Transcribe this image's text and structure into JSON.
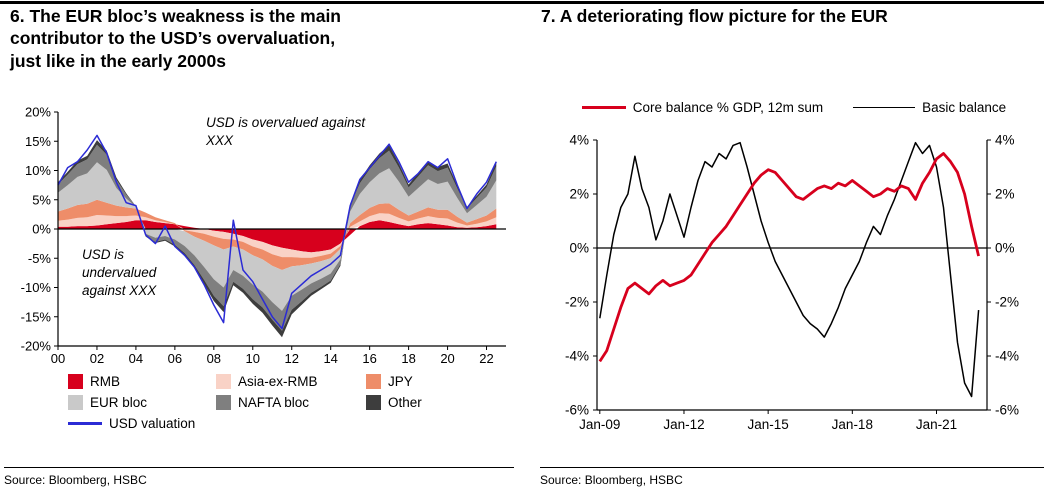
{
  "figure": {
    "left": {
      "title": "6.  The EUR bloc’s weakness is the main\ncontributor to the USD’s overvaluation,\njust like in the early 2000s",
      "source": "Source: Bloomberg, HSBC"
    },
    "right": {
      "title": "7. A deteriorating flow picture for the EUR",
      "source": "Source: Bloomberg, HSBC"
    }
  },
  "chart_data": [
    {
      "type": "area",
      "title": "6. The EUR bloc’s weakness is the main contributor to the USD’s overvaluation, just like in the early 2000s",
      "stacked": true,
      "x_range": [
        2000,
        2022.5
      ],
      "xlim": [
        2000,
        2023
      ],
      "ylim": [
        -20,
        20
      ],
      "yticks": [
        20,
        15,
        10,
        5,
        0,
        -5,
        -10,
        -15,
        -20
      ],
      "ytick_labels": [
        "20%",
        "15%",
        "10%",
        "5%",
        "0%",
        "-5%",
        "-10%",
        "-15%",
        "-20%"
      ],
      "xticks": [
        2000,
        2002,
        2004,
        2006,
        2008,
        2010,
        2012,
        2014,
        2016,
        2018,
        2020,
        2022
      ],
      "xtick_labels": [
        "00",
        "02",
        "04",
        "06",
        "08",
        "10",
        "12",
        "14",
        "16",
        "18",
        "20",
        "22"
      ],
      "annotations": [
        {
          "text": "USD is overvalued against XXX",
          "position": "upper-middle"
        },
        {
          "text": "USD is undervalued against XXX",
          "position": "lower-left"
        }
      ],
      "series": [
        {
          "name": "RMB",
          "color": "#d7001d",
          "values": [
            0.4,
            0.4,
            0.5,
            0.5,
            0.6,
            0.8,
            1.0,
            1.2,
            1.5,
            1.5,
            1.2,
            1.0,
            0.8,
            0.5,
            0.2,
            0.0,
            -0.3,
            -0.5,
            -0.8,
            -1.2,
            -1.8,
            -2.2,
            -2.8,
            -3.2,
            -3.5,
            -3.8,
            -4.0,
            -3.8,
            -3.5,
            -2.5,
            -1.0,
            0.5,
            1.2,
            1.5,
            1.2,
            0.8,
            0.5,
            0.8,
            1.0,
            0.8,
            0.6,
            0.3,
            0.2,
            0.3,
            0.5,
            0.8
          ]
        },
        {
          "name": "Asia-ex-RMB",
          "color": "#f9d2c6",
          "values": [
            1.0,
            1.2,
            1.4,
            1.5,
            1.8,
            1.5,
            1.2,
            1.0,
            0.8,
            0.5,
            0.3,
            0.2,
            0.0,
            -0.2,
            -0.5,
            -0.8,
            -1.0,
            -1.2,
            -1.0,
            -1.0,
            -1.2,
            -1.3,
            -1.5,
            -1.6,
            -1.3,
            -1.1,
            -0.9,
            -0.8,
            -0.7,
            -0.4,
            0.4,
            0.8,
            1.0,
            1.2,
            1.4,
            1.1,
            0.8,
            1.0,
            1.2,
            1.1,
            1.2,
            0.8,
            0.4,
            0.6,
            0.8,
            1.2
          ]
        },
        {
          "name": "JPY",
          "color": "#ee8d69",
          "values": [
            1.6,
            1.9,
            2.2,
            2.3,
            2.6,
            2.2,
            1.8,
            1.5,
            1.2,
            0.8,
            0.5,
            0.3,
            0.2,
            -0.2,
            -0.8,
            -1.2,
            -1.5,
            -1.8,
            -1.2,
            -1.3,
            -1.5,
            -1.7,
            -2.0,
            -2.2,
            -1.6,
            -1.3,
            -1.0,
            -0.9,
            -0.8,
            -0.5,
            0.6,
            1.1,
            1.4,
            1.6,
            1.8,
            1.4,
            1.0,
            1.2,
            1.5,
            1.4,
            1.5,
            1.0,
            0.5,
            0.8,
            1.0,
            1.5
          ]
        },
        {
          "name": "EUR bloc",
          "color": "#c9c9c9",
          "values": [
            3.2,
            4.0,
            4.8,
            5.2,
            6.4,
            5.6,
            3.0,
            1.5,
            0.3,
            -0.8,
            -1.5,
            -1.2,
            -1.8,
            -2.5,
            -3.2,
            -4.5,
            -5.8,
            -6.5,
            -4.0,
            -4.5,
            -5.0,
            -5.5,
            -6.2,
            -7.0,
            -5.0,
            -4.2,
            -3.4,
            -3.0,
            -2.6,
            -1.8,
            2.0,
            3.6,
            4.4,
            5.2,
            6.0,
            4.8,
            3.2,
            4.0,
            4.8,
            4.4,
            4.8,
            3.2,
            1.6,
            2.4,
            3.2,
            4.8
          ]
        },
        {
          "name": "NAFTA bloc",
          "color": "#7f7f7f",
          "values": [
            1.4,
            1.8,
            2.2,
            2.4,
            3.0,
            2.6,
            1.4,
            0.7,
            0.1,
            -0.4,
            -0.7,
            -0.6,
            -0.9,
            -1.2,
            -1.6,
            -2.2,
            -2.8,
            -3.2,
            -2.0,
            -2.2,
            -2.5,
            -2.7,
            -3.0,
            -3.4,
            -2.4,
            -2.0,
            -1.6,
            -1.4,
            -1.2,
            -0.8,
            1.0,
            1.8,
            2.2,
            2.6,
            3.0,
            2.4,
            1.6,
            2.0,
            2.4,
            2.2,
            2.4,
            1.6,
            0.8,
            1.2,
            1.6,
            2.4
          ]
        },
        {
          "name": "Other",
          "color": "#3d3d3d",
          "values": [
            0.4,
            0.5,
            0.6,
            0.6,
            0.8,
            0.7,
            0.4,
            0.2,
            0.0,
            -0.1,
            -0.2,
            -0.2,
            -0.3,
            -0.4,
            -0.5,
            -0.7,
            -0.9,
            -1.0,
            -0.6,
            -0.7,
            -0.8,
            -0.9,
            -1.0,
            -1.1,
            -0.8,
            -0.6,
            -0.5,
            -0.4,
            -0.4,
            -0.3,
            0.3,
            0.6,
            0.7,
            0.8,
            0.9,
            0.7,
            0.5,
            0.6,
            0.7,
            0.7,
            0.7,
            0.5,
            0.3,
            0.4,
            0.5,
            0.7
          ]
        }
      ],
      "line_series": {
        "name": "USD valuation",
        "color": "#2b2bd5",
        "values": [
          7.5,
          10.5,
          11.5,
          13.5,
          16.0,
          13.0,
          8.0,
          4.5,
          4.0,
          -1.0,
          -2.5,
          0.5,
          -3.0,
          -4.5,
          -6.5,
          -9.5,
          -13.0,
          -16.0,
          1.5,
          -7.0,
          -9.0,
          -12.0,
          -15.0,
          -17.0,
          -11.0,
          -9.5,
          -8.0,
          -7.0,
          -6.0,
          -4.5,
          4.0,
          8.5,
          10.5,
          12.5,
          14.5,
          11.5,
          8.0,
          9.5,
          11.5,
          10.5,
          12.0,
          7.5,
          3.5,
          6.0,
          8.0,
          11.5
        ]
      }
    },
    {
      "type": "line",
      "title": "7. A deteriorating flow picture for the EUR",
      "x_range": [
        2009,
        2022.5
      ],
      "xlim": [
        2008.9,
        2022.8
      ],
      "ylim": [
        -6,
        4
      ],
      "yticks": [
        4,
        2,
        0,
        -2,
        -4,
        -6
      ],
      "ytick_labels": [
        "4%",
        "2%",
        "0%",
        "-2%",
        "-4%",
        "-6%"
      ],
      "xticks": [
        2009,
        2012,
        2015,
        2018,
        2021
      ],
      "xtick_labels": [
        "Jan-09",
        "Jan-12",
        "Jan-15",
        "Jan-18",
        "Jan-21"
      ],
      "right_axis": true,
      "series": [
        {
          "name": "Core balance % GDP, 12m sum",
          "color": "#d7001d",
          "width": 2.8,
          "values": [
            -4.2,
            -3.8,
            -3.0,
            -2.2,
            -1.5,
            -1.3,
            -1.5,
            -1.7,
            -1.4,
            -1.2,
            -1.4,
            -1.3,
            -1.2,
            -1.0,
            -0.6,
            -0.2,
            0.2,
            0.5,
            0.8,
            1.2,
            1.6,
            2.0,
            2.4,
            2.7,
            2.9,
            2.8,
            2.5,
            2.2,
            1.9,
            1.8,
            2.0,
            2.2,
            2.3,
            2.2,
            2.4,
            2.3,
            2.5,
            2.3,
            2.1,
            1.9,
            2.0,
            2.2,
            2.1,
            2.3,
            2.2,
            1.8,
            2.4,
            2.8,
            3.3,
            3.5,
            3.2,
            2.8,
            2.0,
            0.8,
            -0.3
          ]
        },
        {
          "name": "Basic balance",
          "color": "#000000",
          "width": 1.5,
          "values": [
            -2.6,
            -1.0,
            0.5,
            1.5,
            2.0,
            3.4,
            2.2,
            1.5,
            0.3,
            1.0,
            2.0,
            1.2,
            0.4,
            1.5,
            2.5,
            3.2,
            3.0,
            3.5,
            3.3,
            3.8,
            3.9,
            3.0,
            2.0,
            1.0,
            0.2,
            -0.5,
            -1.0,
            -1.5,
            -2.0,
            -2.5,
            -2.8,
            -3.0,
            -3.3,
            -2.8,
            -2.2,
            -1.5,
            -1.0,
            -0.5,
            0.2,
            0.8,
            0.5,
            1.2,
            1.8,
            2.5,
            3.2,
            3.9,
            3.5,
            3.8,
            3.0,
            1.5,
            -1.0,
            -3.5,
            -5.0,
            -5.5,
            -2.3
          ]
        }
      ]
    }
  ]
}
